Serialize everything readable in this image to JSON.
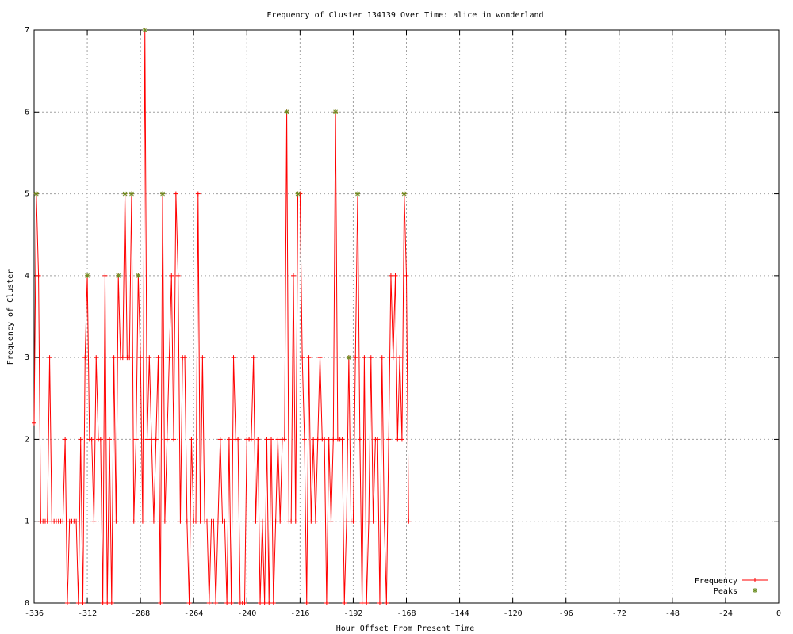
{
  "chart_data": {
    "type": "line",
    "title": "Frequency of Cluster 134139 Over Time: alice in wonderland",
    "xlabel": "Hour Offset From Present Time",
    "ylabel": "Frequency of Cluster",
    "xlim": [
      -336,
      0
    ],
    "ylim": [
      0,
      7
    ],
    "xticks": [
      -336,
      -312,
      -288,
      -264,
      -240,
      -216,
      -192,
      -168,
      -144,
      -120,
      -96,
      -72,
      -48,
      -24,
      0
    ],
    "yticks": [
      0,
      1,
      2,
      3,
      4,
      5,
      6,
      7
    ],
    "grid": true,
    "legend": "bottom-right",
    "series": [
      {
        "name": "Frequency",
        "color": "#ff0000",
        "marker": "plus",
        "points": [
          [
            -336,
            2.2
          ],
          [
            -335,
            5
          ],
          [
            -334,
            4
          ],
          [
            -333,
            1
          ],
          [
            -332,
            1
          ],
          [
            -331,
            1
          ],
          [
            -330,
            1
          ],
          [
            -329,
            3
          ],
          [
            -328,
            1
          ],
          [
            -327,
            1
          ],
          [
            -326,
            1
          ],
          [
            -325,
            1
          ],
          [
            -324,
            1
          ],
          [
            -323,
            1
          ],
          [
            -322,
            2
          ],
          [
            -321,
            0
          ],
          [
            -320,
            1
          ],
          [
            -319,
            1
          ],
          [
            -318,
            1
          ],
          [
            -317,
            1
          ],
          [
            -316,
            0
          ],
          [
            -315,
            2
          ],
          [
            -314,
            0
          ],
          [
            -313,
            3
          ],
          [
            -312,
            4
          ],
          [
            -311,
            2
          ],
          [
            -310,
            2
          ],
          [
            -309,
            1
          ],
          [
            -308,
            3
          ],
          [
            -307,
            2
          ],
          [
            -306,
            2
          ],
          [
            -305,
            0
          ],
          [
            -304,
            4
          ],
          [
            -303,
            0
          ],
          [
            -302,
            2
          ],
          [
            -301,
            0
          ],
          [
            -300,
            3
          ],
          [
            -299,
            1
          ],
          [
            -298,
            4
          ],
          [
            -297,
            3
          ],
          [
            -296,
            3
          ],
          [
            -295,
            5
          ],
          [
            -294,
            3
          ],
          [
            -293,
            3
          ],
          [
            -292,
            5
          ],
          [
            -291,
            1
          ],
          [
            -290,
            2
          ],
          [
            -289,
            4
          ],
          [
            -288,
            3
          ],
          [
            -287,
            1
          ],
          [
            -286,
            7
          ],
          [
            -285,
            2
          ],
          [
            -284,
            3
          ],
          [
            -283,
            2
          ],
          [
            -282,
            1
          ],
          [
            -281,
            2
          ],
          [
            -280,
            3
          ],
          [
            -279,
            0
          ],
          [
            -278,
            5
          ],
          [
            -277,
            1
          ],
          [
            -276,
            2
          ],
          [
            -275,
            3
          ],
          [
            -274,
            4
          ],
          [
            -273,
            2
          ],
          [
            -272,
            5
          ],
          [
            -271,
            4
          ],
          [
            -270,
            1
          ],
          [
            -269,
            3
          ],
          [
            -268,
            3
          ],
          [
            -267,
            1
          ],
          [
            -266,
            0
          ],
          [
            -265,
            2
          ],
          [
            -264,
            1
          ],
          [
            -263,
            1
          ],
          [
            -262,
            5
          ],
          [
            -261,
            1
          ],
          [
            -260,
            3
          ],
          [
            -259,
            1
          ],
          [
            -258,
            1
          ],
          [
            -257,
            0
          ],
          [
            -256,
            1
          ],
          [
            -255,
            1
          ],
          [
            -254,
            0
          ],
          [
            -253,
            1
          ],
          [
            -252,
            2
          ],
          [
            -251,
            1
          ],
          [
            -250,
            1
          ],
          [
            -249,
            0
          ],
          [
            -248,
            2
          ],
          [
            -247,
            0
          ],
          [
            -246,
            3
          ],
          [
            -245,
            2
          ],
          [
            -244,
            2
          ],
          [
            -243,
            0
          ],
          [
            -242,
            0
          ],
          [
            -241,
            0
          ],
          [
            -240,
            2
          ],
          [
            -239,
            2
          ],
          [
            -238,
            2
          ],
          [
            -237,
            3
          ],
          [
            -236,
            1
          ],
          [
            -235,
            2
          ],
          [
            -234,
            0
          ],
          [
            -233,
            1
          ],
          [
            -232,
            0
          ],
          [
            -231,
            2
          ],
          [
            -230,
            0
          ],
          [
            -229,
            2
          ],
          [
            -228,
            0
          ],
          [
            -227,
            1
          ],
          [
            -226,
            2
          ],
          [
            -225,
            1
          ],
          [
            -224,
            2
          ],
          [
            -223,
            2
          ],
          [
            -222,
            6
          ],
          [
            -221,
            1
          ],
          [
            -220,
            1
          ],
          [
            -219,
            4
          ],
          [
            -218,
            1
          ],
          [
            -217,
            5
          ],
          [
            -216,
            5
          ],
          [
            -215,
            3
          ],
          [
            -214,
            2
          ],
          [
            -213,
            0
          ],
          [
            -212,
            3
          ],
          [
            -211,
            1
          ],
          [
            -210,
            2
          ],
          [
            -209,
            1
          ],
          [
            -208,
            2
          ],
          [
            -207,
            3
          ],
          [
            -206,
            2
          ],
          [
            -205,
            2
          ],
          [
            -204,
            0
          ],
          [
            -203,
            2
          ],
          [
            -202,
            1
          ],
          [
            -201,
            2
          ],
          [
            -200,
            6
          ],
          [
            -199,
            2
          ],
          [
            -198,
            2
          ],
          [
            -197,
            2
          ],
          [
            -196,
            0
          ],
          [
            -195,
            1
          ],
          [
            -194,
            3
          ],
          [
            -193,
            1
          ],
          [
            -192,
            1
          ],
          [
            -191,
            3
          ],
          [
            -190,
            5
          ],
          [
            -189,
            2
          ],
          [
            -188,
            0
          ],
          [
            -187,
            3
          ],
          [
            -186,
            0
          ],
          [
            -185,
            1
          ],
          [
            -184,
            3
          ],
          [
            -183,
            1
          ],
          [
            -182,
            2
          ],
          [
            -181,
            2
          ],
          [
            -180,
            0
          ],
          [
            -179,
            3
          ],
          [
            -178,
            1
          ],
          [
            -177,
            0
          ],
          [
            -176,
            2
          ],
          [
            -175,
            4
          ],
          [
            -174,
            3
          ],
          [
            -173,
            4
          ],
          [
            -172,
            2
          ],
          [
            -171,
            3
          ],
          [
            -170,
            2
          ],
          [
            -169,
            5
          ],
          [
            -168,
            4
          ],
          [
            -167,
            1
          ]
        ]
      },
      {
        "name": "Peaks",
        "color": "#6b8e23",
        "marker": "star",
        "points": [
          [
            -335,
            5
          ],
          [
            -312,
            4
          ],
          [
            -298,
            4
          ],
          [
            -289,
            4
          ],
          [
            -295,
            5
          ],
          [
            -292,
            5
          ],
          [
            -286,
            7
          ],
          [
            -278,
            5
          ],
          [
            -217,
            5
          ],
          [
            -222,
            6
          ],
          [
            -200,
            6
          ],
          [
            -190,
            5
          ],
          [
            -169,
            5
          ],
          [
            -194,
            3
          ]
        ]
      }
    ]
  }
}
